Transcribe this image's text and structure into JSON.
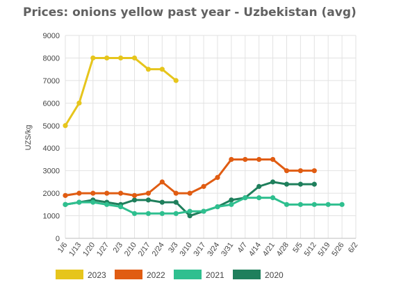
{
  "chart_data": {
    "type": "line",
    "title": "Prices: onions yellow past year - Uzbekistan (avg)",
    "xlabel": "",
    "ylabel": "UZS/kg",
    "ylim": [
      0,
      9000
    ],
    "yticks": [
      "0",
      "1000",
      "2000",
      "3000",
      "4000",
      "5000",
      "6000",
      "7000",
      "8000",
      "9000"
    ],
    "categories": [
      "1/6",
      "1/13",
      "1/20",
      "1/27",
      "2/3",
      "2/10",
      "2/17",
      "2/24",
      "3/3",
      "3/10",
      "3/17",
      "3/24",
      "3/31",
      "4/7",
      "4/14",
      "4/21",
      "4/28",
      "5/5",
      "5/12",
      "5/19",
      "5/26",
      "6/2"
    ],
    "series": [
      {
        "name": "2023",
        "color": "#e6c51c",
        "values": [
          5000,
          6000,
          8000,
          8000,
          8000,
          8000,
          7500,
          7500,
          7000,
          null,
          null,
          null,
          null,
          null,
          null,
          null,
          null,
          null,
          null,
          null,
          null,
          null
        ]
      },
      {
        "name": "2022",
        "color": "#e05c12",
        "values": [
          1900,
          2000,
          2000,
          2000,
          2000,
          1900,
          2000,
          2500,
          2000,
          2000,
          2300,
          2700,
          3500,
          3500,
          3500,
          3500,
          3000,
          3000,
          3000,
          null,
          null,
          null
        ]
      },
      {
        "name": "2021",
        "color": "#2fbf8f",
        "values": [
          1500,
          1600,
          1600,
          1500,
          1400,
          1100,
          1100,
          1100,
          1100,
          1200,
          1200,
          1400,
          1500,
          1800,
          1800,
          1800,
          1500,
          1500,
          1500,
          1500,
          1500,
          null
        ]
      },
      {
        "name": "2020",
        "color": "#1f7f5c",
        "values": [
          1500,
          1600,
          1700,
          1600,
          1500,
          1700,
          1700,
          1600,
          1600,
          1000,
          1200,
          1400,
          1700,
          1800,
          2300,
          2500,
          2400,
          2400,
          2400,
          null,
          null,
          null
        ]
      }
    ],
    "grid": true,
    "legend_position": "bottom-left"
  }
}
